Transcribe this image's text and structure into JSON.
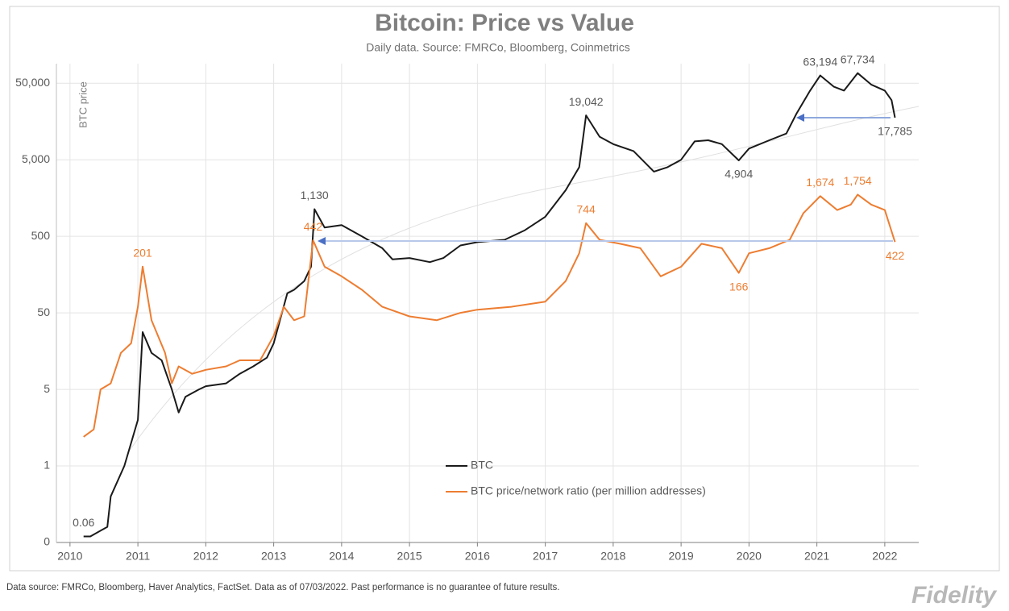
{
  "chart_data": {
    "type": "line",
    "title": "Bitcoin: Price vs Value",
    "subtitle": "Daily data.  Source: FMRCo, Bloomberg, Coinmetrics",
    "y_label": "BTC price",
    "log_y": true,
    "grid": true,
    "xlim": [
      2009.8,
      2022.5
    ],
    "xticks": [
      2010,
      2011,
      2012,
      2013,
      2014,
      2015,
      2016,
      2017,
      2018,
      2019,
      2020,
      2021,
      2022
    ],
    "ylim": [
      0.05,
      90000
    ],
    "yticks": [
      {
        "value": 0.05,
        "label": "0"
      },
      {
        "value": 0.5,
        "label": "1"
      },
      5,
      50,
      500,
      {
        "value": 5000,
        "label": "5,000"
      },
      {
        "value": 50000,
        "label": "50,000"
      }
    ],
    "series": [
      {
        "name": "BTC",
        "color": "#1a1a1a",
        "x": [
          2010.2,
          2010.3,
          2010.55,
          2010.6,
          2010.8,
          2010.9,
          2011.0,
          2011.07,
          2011.2,
          2011.35,
          2011.5,
          2011.6,
          2011.7,
          2011.9,
          2012.0,
          2012.3,
          2012.5,
          2012.7,
          2012.9,
          2013.0,
          2013.2,
          2013.3,
          2013.45,
          2013.55,
          2013.6,
          2013.75,
          2014.0,
          2014.3,
          2014.6,
          2014.75,
          2015.0,
          2015.3,
          2015.5,
          2015.75,
          2016.0,
          2016.4,
          2016.7,
          2017.0,
          2017.3,
          2017.5,
          2017.6,
          2017.8,
          2018.0,
          2018.3,
          2018.6,
          2018.8,
          2019.0,
          2019.2,
          2019.4,
          2019.6,
          2019.85,
          2020.0,
          2020.3,
          2020.55,
          2020.7,
          2020.9,
          2021.05,
          2021.25,
          2021.4,
          2021.6,
          2021.8,
          2022.0,
          2022.1,
          2022.15
        ],
        "values": [
          0.06,
          0.06,
          0.08,
          0.2,
          0.5,
          1.0,
          2,
          28,
          15,
          12,
          5,
          2.5,
          4,
          5,
          5.5,
          6,
          8,
          10,
          13,
          20,
          90,
          100,
          130,
          200,
          1130,
          650,
          700,
          500,
          350,
          250,
          260,
          230,
          260,
          380,
          420,
          450,
          600,
          900,
          2000,
          4000,
          19042,
          10000,
          8000,
          6500,
          3500,
          4000,
          5000,
          8700,
          9000,
          8000,
          4904,
          7000,
          9000,
          11000,
          20000,
          40000,
          63194,
          45000,
          40000,
          67734,
          48000,
          40000,
          30000,
          17785
        ],
        "value_labels": [
          "0.06",
          null,
          null,
          null,
          null,
          null,
          null,
          null,
          null,
          null,
          null,
          null,
          null,
          null,
          null,
          null,
          null,
          null,
          null,
          null,
          null,
          null,
          null,
          null,
          "1,130",
          null,
          null,
          null,
          null,
          null,
          null,
          null,
          null,
          null,
          null,
          null,
          null,
          null,
          null,
          null,
          "19,042",
          null,
          null,
          null,
          null,
          null,
          null,
          null,
          null,
          null,
          "4,904",
          null,
          null,
          null,
          null,
          null,
          "63,194",
          null,
          null,
          "67,734",
          null,
          null,
          null,
          "17,785"
        ]
      },
      {
        "name": "BTC price/network ratio (per million addresses)",
        "color": "#ed7d31",
        "x": [
          2010.2,
          2010.35,
          2010.45,
          2010.6,
          2010.75,
          2010.9,
          2011.0,
          2011.07,
          2011.2,
          2011.4,
          2011.5,
          2011.6,
          2011.8,
          2012.0,
          2012.3,
          2012.5,
          2012.8,
          2013.0,
          2013.15,
          2013.3,
          2013.45,
          2013.58,
          2013.75,
          2014.0,
          2014.3,
          2014.6,
          2015.0,
          2015.4,
          2015.75,
          2016.0,
          2016.5,
          2017.0,
          2017.3,
          2017.5,
          2017.6,
          2017.8,
          2018.1,
          2018.4,
          2018.7,
          2019.0,
          2019.3,
          2019.6,
          2019.85,
          2020.0,
          2020.3,
          2020.6,
          2020.8,
          2021.05,
          2021.3,
          2021.5,
          2021.6,
          2021.8,
          2022.0,
          2022.15
        ],
        "values": [
          1.2,
          1.5,
          5,
          6,
          15,
          20,
          60,
          201,
          40,
          15,
          6,
          10,
          8,
          9,
          10,
          12,
          12,
          25,
          60,
          40,
          45,
          442,
          200,
          150,
          100,
          60,
          45,
          40,
          50,
          55,
          60,
          70,
          130,
          300,
          744,
          450,
          400,
          350,
          150,
          200,
          400,
          350,
          166,
          300,
          350,
          450,
          1000,
          1674,
          1100,
          1300,
          1754,
          1300,
          1100,
          422
        ],
        "value_labels": [
          null,
          null,
          null,
          null,
          null,
          null,
          null,
          "201",
          null,
          null,
          null,
          null,
          null,
          null,
          null,
          null,
          null,
          null,
          null,
          null,
          null,
          "442",
          null,
          null,
          null,
          null,
          null,
          null,
          null,
          null,
          null,
          null,
          null,
          null,
          "744",
          null,
          null,
          null,
          null,
          null,
          null,
          null,
          "166",
          null,
          null,
          null,
          null,
          "1,674",
          null,
          null,
          "1,754",
          null,
          null,
          "422"
        ]
      }
    ]
  },
  "footer": {
    "note": "Data source: FMRCo, Bloomberg, Haver Analytics, FactSet. Data as of 07/03/2022. Past performance is no guarantee of future results.",
    "logo": "Fidelity"
  }
}
